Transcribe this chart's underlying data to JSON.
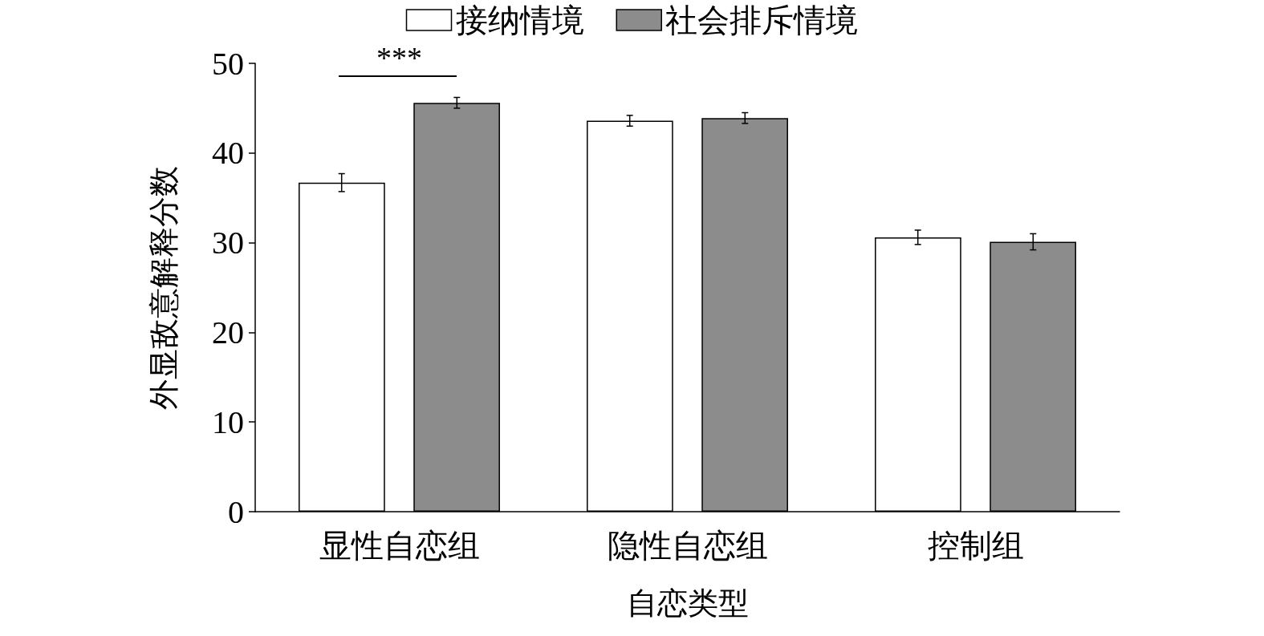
{
  "chart_data": {
    "type": "bar",
    "xlabel": "自恋类型",
    "ylabel": "外显敌意解释分数",
    "categories": [
      "显性自恋组",
      "隐性自恋组",
      "控制组"
    ],
    "series": [
      {
        "name": "接纳情境",
        "color": "#ffffff",
        "values": [
          36.7,
          43.6,
          30.6
        ],
        "errors": [
          1.0,
          0.6,
          0.8
        ]
      },
      {
        "name": "社会排斥情境",
        "color": "#8c8c8c",
        "values": [
          45.6,
          43.9,
          30.1
        ],
        "errors": [
          0.6,
          0.6,
          0.9
        ]
      }
    ],
    "ylim": [
      0,
      50
    ],
    "yticks": [
      0,
      10,
      20,
      30,
      40,
      50
    ],
    "grid": false,
    "legend": "top",
    "annotations": [
      "***"
    ]
  }
}
